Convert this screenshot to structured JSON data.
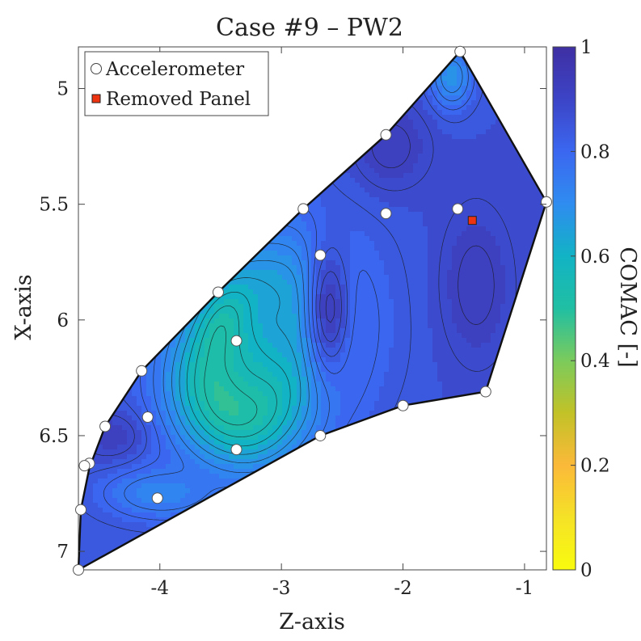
{
  "chart_data": {
    "type": "contour",
    "title": "Case #9 – PW2",
    "xlabel": "Z-axis",
    "ylabel": "X-axis",
    "xlim": [
      -4.67,
      -0.82
    ],
    "ylim": [
      4.82,
      7.08
    ],
    "y_reversed": true,
    "x_ticks": [
      -4,
      -3,
      -2,
      -1
    ],
    "x_tick_labels": [
      "-4",
      "-3",
      "-2",
      "-1"
    ],
    "y_ticks": [
      5,
      5.5,
      6,
      6.5,
      7
    ],
    "y_tick_labels": [
      "5",
      "5.5",
      "6",
      "6.5",
      "7"
    ],
    "colorbar": {
      "label": "COMAC [-]",
      "range": [
        0,
        1
      ],
      "ticks": [
        0,
        0.2,
        0.4,
        0.6,
        0.8,
        1
      ],
      "tick_labels": [
        "0",
        "0.2",
        "0.4",
        "0.6",
        "0.8",
        "1"
      ],
      "colormap": [
        "#f9fb0e",
        "#fbb939",
        "#c2c227",
        "#55c28a",
        "#12b3c5",
        "#2f8cf0",
        "#3b67f0",
        "#3c44c6",
        "#3f2fa3"
      ]
    },
    "legend": {
      "location": "top-left",
      "entries": [
        "Accelerometer",
        "Removed Panel"
      ]
    },
    "boundary": [
      [
        -4.67,
        7.08
      ],
      [
        -4.65,
        6.82
      ],
      [
        -4.58,
        6.64
      ],
      [
        -4.45,
        6.46
      ],
      [
        -4.15,
        6.22
      ],
      [
        -3.52,
        5.88
      ],
      [
        -2.82,
        5.52
      ],
      [
        -2.14,
        5.2
      ],
      [
        -1.53,
        4.84
      ],
      [
        -0.82,
        5.49
      ],
      [
        -1.32,
        6.31
      ],
      [
        -2.0,
        6.37
      ],
      [
        -2.68,
        6.5
      ],
      [
        -4.67,
        7.08
      ]
    ],
    "series": [
      {
        "name": "Accelerometer",
        "marker": "circle",
        "color": "#ffffff",
        "points": [
          [
            -1.53,
            4.84
          ],
          [
            -2.14,
            5.2
          ],
          [
            -2.82,
            5.52
          ],
          [
            -2.14,
            5.54
          ],
          [
            -1.55,
            5.52
          ],
          [
            -0.82,
            5.49
          ],
          [
            -2.68,
            5.72
          ],
          [
            -3.52,
            5.88
          ],
          [
            -3.37,
            6.09
          ],
          [
            -4.15,
            6.22
          ],
          [
            -1.32,
            6.31
          ],
          [
            -2.0,
            6.37
          ],
          [
            -4.1,
            6.42
          ],
          [
            -4.45,
            6.46
          ],
          [
            -2.68,
            6.5
          ],
          [
            -3.37,
            6.56
          ],
          [
            -4.58,
            6.62
          ],
          [
            -4.62,
            6.63
          ],
          [
            -4.02,
            6.77
          ],
          [
            -4.65,
            6.82
          ],
          [
            -4.67,
            7.08
          ]
        ]
      },
      {
        "name": "Removed Panel",
        "marker": "square",
        "color": "#ee3311",
        "points": [
          [
            -1.43,
            5.57
          ]
        ]
      }
    ],
    "field_features": [
      {
        "z": -3.37,
        "x": 6.1,
        "level": 0.0,
        "sz": 0.2,
        "sx": 0.16
      },
      {
        "z": -3.25,
        "x": 6.14,
        "level": 0.12,
        "sz": 0.32,
        "sx": 0.26
      },
      {
        "z": -3.35,
        "x": 6.28,
        "level": 0.4,
        "sz": 0.55,
        "sx": 0.33
      },
      {
        "z": -3.0,
        "x": 6.0,
        "level": 0.64,
        "sz": 0.7,
        "sx": 0.45
      },
      {
        "z": -1.6,
        "x": 4.95,
        "level": 0.68,
        "sz": 0.18,
        "sx": 0.14
      },
      {
        "z": -4.0,
        "x": 6.75,
        "level": 0.72,
        "sz": 0.5,
        "sx": 0.12
      },
      {
        "z": -2.1,
        "x": 5.25,
        "level": 0.94,
        "sz": 0.3,
        "sx": 0.18
      },
      {
        "z": -1.4,
        "x": 5.85,
        "level": 0.94,
        "sz": 0.28,
        "sx": 0.32
      },
      {
        "z": -2.6,
        "x": 5.95,
        "level": 0.93,
        "sz": 0.18,
        "sx": 0.3
      },
      {
        "z": -4.4,
        "x": 6.5,
        "level": 0.92,
        "sz": 0.25,
        "sx": 0.1
      }
    ]
  }
}
